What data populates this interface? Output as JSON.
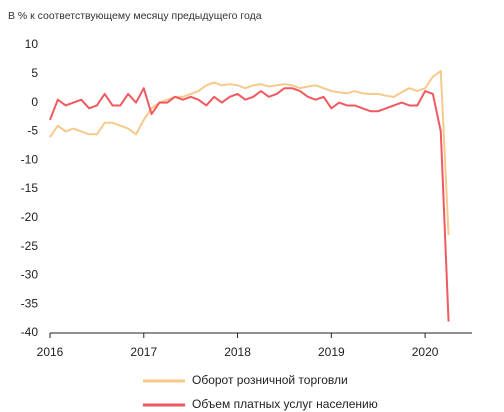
{
  "chart_data": {
    "type": "line",
    "title": "В % к соответствующему месяцу предыдущего года",
    "x": [
      2016,
      2016.083,
      2016.167,
      2016.25,
      2016.333,
      2016.417,
      2016.5,
      2016.583,
      2016.667,
      2016.75,
      2016.833,
      2016.917,
      2017,
      2017.083,
      2017.167,
      2017.25,
      2017.333,
      2017.417,
      2017.5,
      2017.583,
      2017.667,
      2017.75,
      2017.833,
      2017.917,
      2018,
      2018.083,
      2018.167,
      2018.25,
      2018.333,
      2018.417,
      2018.5,
      2018.583,
      2018.667,
      2018.75,
      2018.833,
      2018.917,
      2019,
      2019.083,
      2019.167,
      2019.25,
      2019.333,
      2019.417,
      2019.5,
      2019.583,
      2019.667,
      2019.75,
      2019.833,
      2019.917,
      2020,
      2020.083,
      2020.167,
      2020.25
    ],
    "series": [
      {
        "name": "Оборот розничной торговли",
        "color": "#f7c98b",
        "values": [
          -6,
          -4,
          -5,
          -4.5,
          -5,
          -5.5,
          -5.5,
          -3.5,
          -3.5,
          -4,
          -4.5,
          -5.5,
          -3,
          -1,
          0,
          0.5,
          1,
          1,
          1.5,
          2,
          3,
          3.5,
          3,
          3.2,
          3,
          2.5,
          3,
          3.2,
          2.8,
          3,
          3.2,
          3,
          2.5,
          2.8,
          3,
          2.5,
          2,
          1.8,
          1.6,
          2,
          1.6,
          1.5,
          1.5,
          1.2,
          1,
          1.8,
          2.5,
          2,
          2.5,
          4.5,
          5.5,
          -23
        ]
      },
      {
        "name": "Объем платных услуг населению",
        "color": "#ee5a5f",
        "values": [
          -3,
          0.5,
          -0.5,
          0,
          0.5,
          -1,
          -0.5,
          1.5,
          -0.5,
          -0.5,
          1.5,
          0,
          2.5,
          -2,
          0,
          0,
          1,
          0.5,
          1,
          0.5,
          -0.5,
          1,
          0,
          1,
          1.5,
          0.5,
          1,
          2,
          1,
          1.5,
          2.5,
          2.5,
          2,
          1,
          0.5,
          1,
          -1,
          0,
          -0.5,
          -0.5,
          -1,
          -1.5,
          -1.5,
          -1,
          -0.5,
          0,
          -0.5,
          -0.5,
          2,
          1.5,
          -5,
          -38
        ]
      }
    ],
    "xlim": [
      2016,
      2020.5
    ],
    "xticks": [
      2016,
      2017,
      2018,
      2019,
      2020
    ],
    "ylim": [
      -40,
      10
    ],
    "yticks": [
      10,
      5,
      0,
      -5,
      -10,
      -15,
      -20,
      -25,
      -30,
      -35,
      -40
    ],
    "grid": false
  }
}
